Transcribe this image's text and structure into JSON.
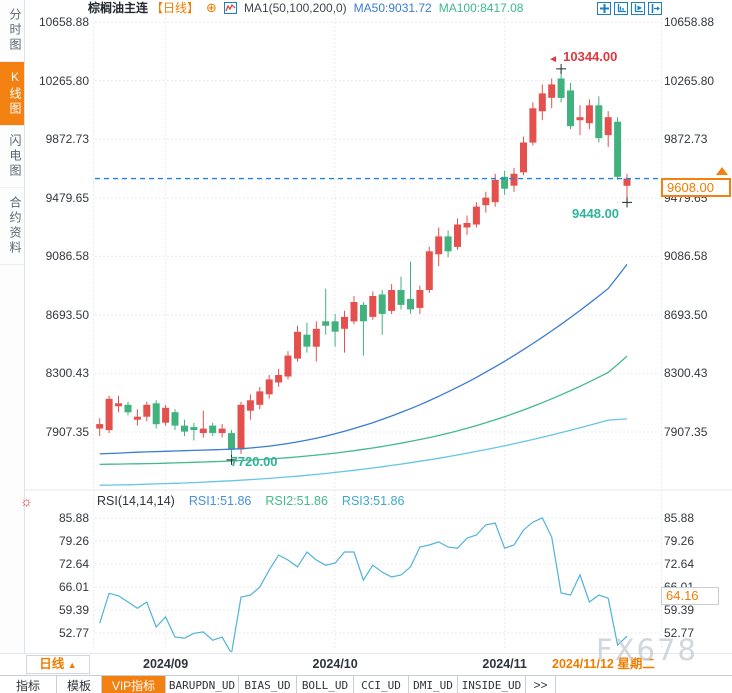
{
  "header": {
    "title": "棕榈油主连",
    "period_tag": "【日线】",
    "indicator_label": "MA1(50,100,200,0)",
    "ma50_label": "MA50:9031.72",
    "ma100_label": "MA100:8417.08",
    "tool_icons": [
      "crosshair-move",
      "axis-scale",
      "axis-scroll",
      "pan-right"
    ]
  },
  "sidebar": {
    "items": [
      {
        "label": "分时图",
        "active": false
      },
      {
        "label": "K线图",
        "active": true
      },
      {
        "label": "闪电图",
        "active": false
      },
      {
        "label": "合约资料",
        "active": false
      }
    ]
  },
  "main_axis": {
    "labels": [
      "10658.88",
      "10265.80",
      "9872.73",
      "9479.65",
      "9086.58",
      "8693.50",
      "8300.43",
      "7907.35"
    ]
  },
  "annotations": {
    "high_label": "10344.00",
    "recent_low_label": "9448.00",
    "september_low_label": "7720.00",
    "last_price_label": "9608.00"
  },
  "rsi": {
    "title": "RSI(14,14,14)",
    "rsi1_label": "RSI1:51.86",
    "rsi2_label": "RSI2:51.86",
    "rsi3_label": "RSI3:51.86",
    "axis_labels": [
      "85.88",
      "79.26",
      "72.64",
      "66.01",
      "59.39",
      "52.77"
    ],
    "current_label": "64.16"
  },
  "xaxis": {
    "period_button": "日线",
    "period_arrow": "▲",
    "current_date": "2024/11/12 星期二"
  },
  "toolbar": {
    "items": [
      "指标",
      "模板",
      "VIP指标",
      "BARUPDN_UD",
      "BIAS_UD",
      "BOLL_UD",
      "CCI_UD",
      "DMI_UD",
      "INSIDE_UD",
      ">>"
    ]
  },
  "watermark": "FX678",
  "colors": {
    "accent_orange": "#f07d00",
    "candle_up": "#e4504e",
    "candle_down": "#41b27e",
    "ma50": "#3a7bd5",
    "ma100": "#43b98c",
    "ma200": "#66c6e4",
    "rsi_line": "#4fb3d8",
    "last_price_line": "#2584e0",
    "annotation_red": "#e0383e",
    "annotation_green": "#2fb39a",
    "grid": "#e2e5e9",
    "tool_icon_blue": "#1b7fc4"
  },
  "chart_data": {
    "type": "candlestick",
    "title": "棕榈油主连 日线",
    "total_slots": 60,
    "price_ticks": [
      10658.88,
      10265.8,
      9872.73,
      9479.65,
      9086.58,
      8693.5,
      8300.43,
      7907.35
    ],
    "last_price": 9608.0,
    "x_months": [
      {
        "label": "2024/09",
        "index": 7
      },
      {
        "label": "2024/10",
        "index": 25
      },
      {
        "label": "2024/11",
        "index": 43
      }
    ],
    "ohlc": [
      [
        7930,
        8000,
        7880,
        7960
      ],
      [
        7920,
        8150,
        7900,
        8130
      ],
      [
        8080,
        8150,
        8040,
        8100
      ],
      [
        8090,
        8110,
        8020,
        8040
      ],
      [
        7990,
        8060,
        7950,
        8010
      ],
      [
        8010,
        8110,
        7980,
        8090
      ],
      [
        8100,
        8120,
        7930,
        7960
      ],
      [
        7970,
        8090,
        7950,
        8070
      ],
      [
        8040,
        8060,
        7920,
        7950
      ],
      [
        7950,
        7990,
        7880,
        7910
      ],
      [
        7940,
        7970,
        7850,
        7920
      ],
      [
        7900,
        8050,
        7870,
        7930
      ],
      [
        7950,
        7970,
        7880,
        7900
      ],
      [
        7900,
        7960,
        7870,
        7930
      ],
      [
        7900,
        7920,
        7720,
        7790
      ],
      [
        7790,
        8110,
        7760,
        8090
      ],
      [
        8050,
        8160,
        7990,
        8120
      ],
      [
        8090,
        8210,
        8060,
        8180
      ],
      [
        8160,
        8290,
        8130,
        8260
      ],
      [
        8240,
        8330,
        8210,
        8290
      ],
      [
        8280,
        8450,
        8260,
        8420
      ],
      [
        8400,
        8620,
        8380,
        8580
      ],
      [
        8560,
        8640,
        8440,
        8480
      ],
      [
        8480,
        8650,
        8380,
        8600
      ],
      [
        8650,
        8870,
        8560,
        8620
      ],
      [
        8650,
        8700,
        8480,
        8580
      ],
      [
        8600,
        8720,
        8440,
        8680
      ],
      [
        8650,
        8820,
        8630,
        8780
      ],
      [
        8760,
        8780,
        8420,
        8650
      ],
      [
        8680,
        8850,
        8660,
        8820
      ],
      [
        8830,
        8860,
        8560,
        8700
      ],
      [
        8720,
        8900,
        8700,
        8860
      ],
      [
        8860,
        8950,
        8730,
        8760
      ],
      [
        8800,
        9050,
        8700,
        8730
      ],
      [
        8740,
        8890,
        8700,
        8860
      ],
      [
        8860,
        9150,
        8840,
        9120
      ],
      [
        9100,
        9280,
        9020,
        9220
      ],
      [
        9220,
        9260,
        9080,
        9120
      ],
      [
        9150,
        9340,
        9130,
        9300
      ],
      [
        9280,
        9360,
        9230,
        9310
      ],
      [
        9300,
        9450,
        9280,
        9420
      ],
      [
        9430,
        9520,
        9380,
        9480
      ],
      [
        9450,
        9640,
        9420,
        9600
      ],
      [
        9620,
        9660,
        9500,
        9540
      ],
      [
        9560,
        9680,
        9520,
        9640
      ],
      [
        9650,
        9890,
        9630,
        9850
      ],
      [
        9850,
        10120,
        9830,
        10080
      ],
      [
        10060,
        10240,
        10000,
        10180
      ],
      [
        10150,
        10280,
        10080,
        10240
      ],
      [
        10280,
        10344,
        10120,
        10150
      ],
      [
        10200,
        10250,
        9940,
        9960
      ],
      [
        10000,
        10100,
        9900,
        10020
      ],
      [
        9980,
        10140,
        9940,
        10100
      ],
      [
        10100,
        10160,
        9850,
        9880
      ],
      [
        9900,
        10060,
        9820,
        10020
      ],
      [
        9990,
        10020,
        9600,
        9620
      ],
      [
        9560,
        9640,
        9448,
        9608
      ]
    ],
    "series": [
      {
        "name": "MA50",
        "color_key": "ma50",
        "values": [
          7760,
          7763,
          7766,
          7769,
          7772,
          7774,
          7776,
          7778,
          7780,
          7782,
          7784,
          7786,
          7788,
          7790,
          7792,
          7795,
          7800,
          7806,
          7813,
          7821,
          7830,
          7841,
          7853,
          7866,
          7880,
          7896,
          7913,
          7931,
          7950,
          7970,
          7992,
          8015,
          8039,
          8064,
          8090,
          8118,
          8147,
          8177,
          8208,
          8240,
          8274,
          8309,
          8345,
          8382,
          8420,
          8460,
          8501,
          8543,
          8586,
          8630,
          8676,
          8723,
          8771,
          8820,
          8870,
          8950,
          9032
        ]
      },
      {
        "name": "MA100",
        "color_key": "ma100",
        "values": [
          7690,
          7691,
          7692,
          7693,
          7694,
          7695,
          7696,
          7698,
          7700,
          7702,
          7704,
          7706,
          7708,
          7710,
          7713,
          7716,
          7719,
          7722,
          7726,
          7730,
          7735,
          7740,
          7746,
          7752,
          7759,
          7766,
          7774,
          7782,
          7791,
          7800,
          7810,
          7821,
          7832,
          7844,
          7857,
          7870,
          7884,
          7899,
          7915,
          7932,
          7950,
          7969,
          7989,
          8010,
          8032,
          8055,
          8079,
          8104,
          8130,
          8157,
          8185,
          8214,
          8244,
          8275,
          8307,
          8360,
          8417
        ]
      },
      {
        "name": "MA200",
        "color_key": "ma200",
        "values": [
          7550,
          7551,
          7552,
          7553,
          7555,
          7557,
          7559,
          7561,
          7563,
          7565,
          7568,
          7571,
          7574,
          7577,
          7580,
          7584,
          7588,
          7592,
          7596,
          7601,
          7606,
          7611,
          7617,
          7623,
          7629,
          7636,
          7643,
          7650,
          7658,
          7666,
          7674,
          7683,
          7692,
          7701,
          7711,
          7721,
          7731,
          7742,
          7753,
          7765,
          7777,
          7789,
          7802,
          7815,
          7829,
          7843,
          7857,
          7872,
          7887,
          7903,
          7919,
          7935,
          7952,
          7969,
          7987,
          7991,
          7995
        ]
      }
    ],
    "markers": [
      {
        "candle": 49,
        "price": 10344,
        "pos": "high"
      },
      {
        "candle": 56,
        "price": 9448,
        "pos": "low"
      },
      {
        "candle": 14,
        "price": 7720,
        "pos": "low"
      }
    ],
    "rsi": {
      "ticks": [
        85.88,
        79.26,
        72.64,
        66.01,
        59.39,
        52.77
      ],
      "values": [
        55.6,
        64.2,
        63.5,
        61.7,
        59.9,
        61.7,
        54.5,
        57.4,
        51.6,
        51.3,
        52.7,
        53.1,
        50.7,
        51.6,
        46.9,
        63.1,
        63.7,
        66.0,
        70.9,
        75.2,
        73.8,
        71.8,
        76.1,
        73.8,
        72.3,
        72.9,
        76.1,
        76.1,
        68.0,
        72.3,
        70.3,
        68.9,
        69.5,
        71.8,
        77.5,
        78.1,
        79.0,
        77.5,
        77.2,
        80.1,
        81.0,
        83.9,
        84.4,
        77.2,
        78.1,
        82.4,
        84.7,
        85.9,
        80.4,
        64.3,
        63.7,
        69.5,
        61.7,
        63.7,
        62.8,
        49.3,
        51.86
      ],
      "current": 64.16
    }
  }
}
